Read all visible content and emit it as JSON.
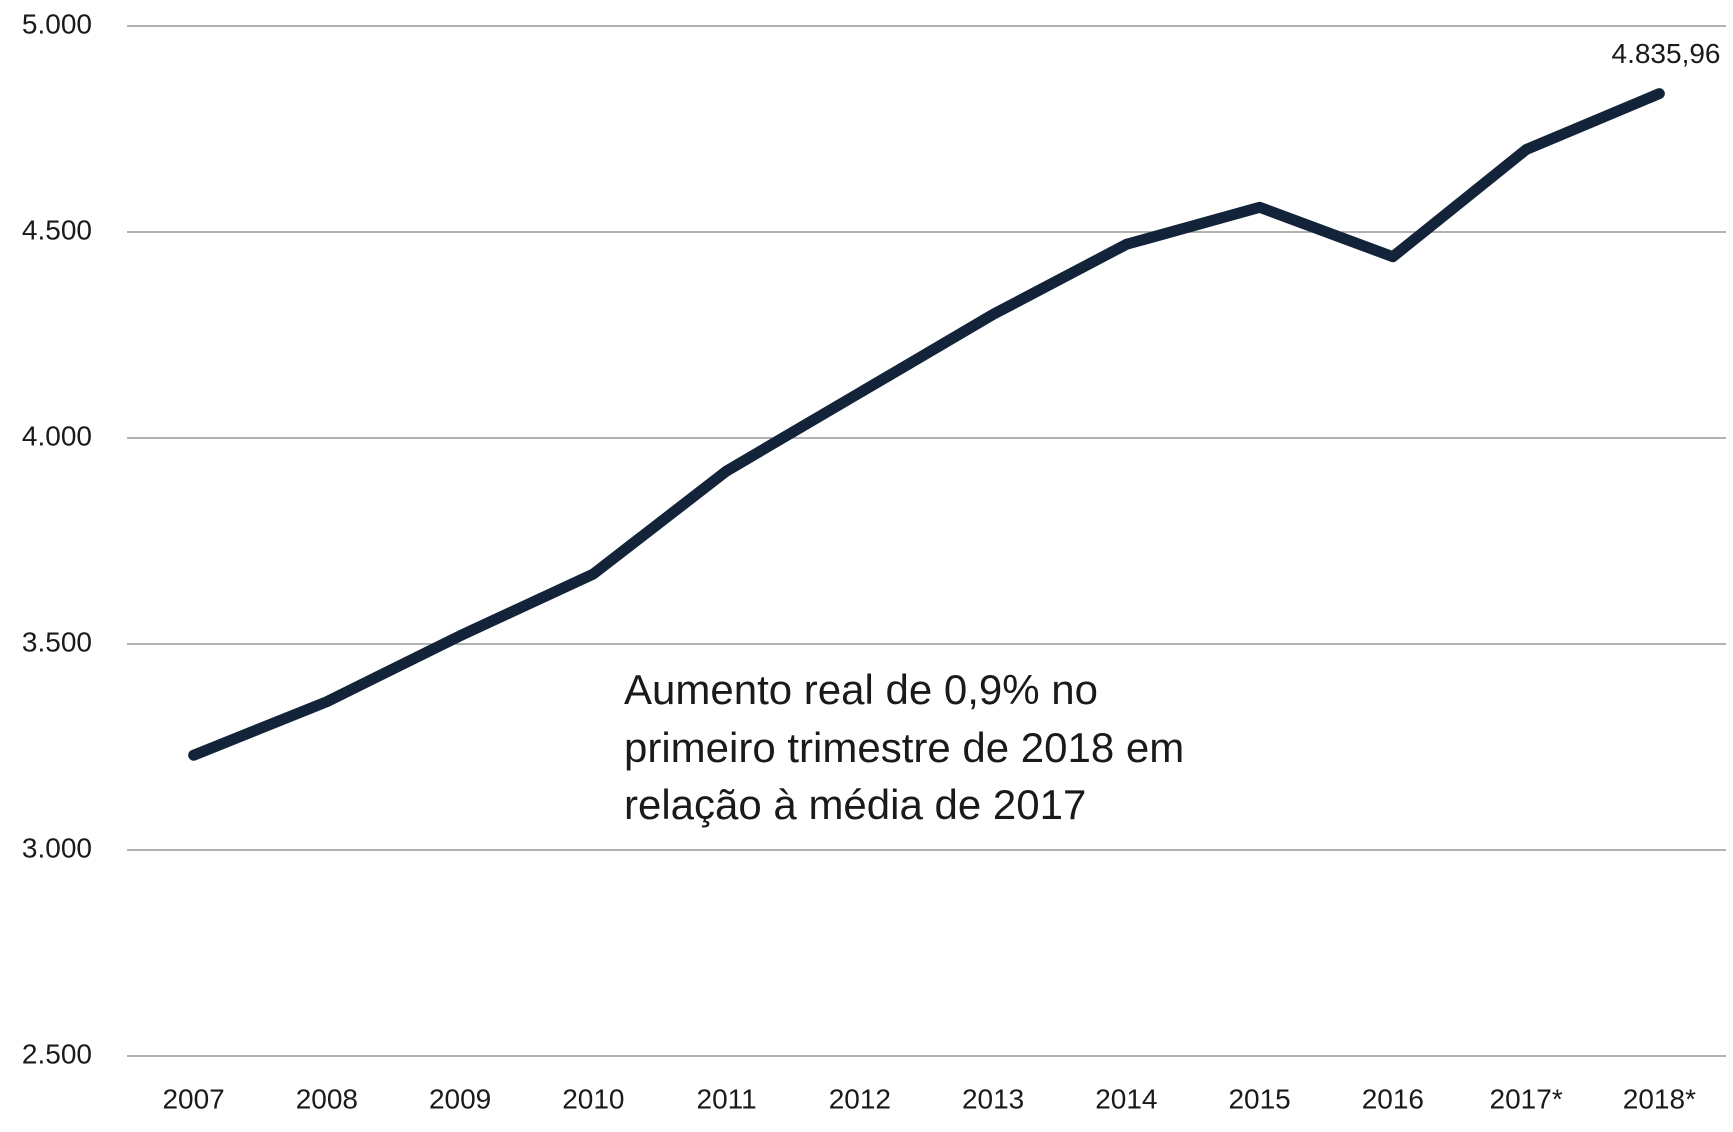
{
  "chart_data": {
    "type": "line",
    "categories": [
      "2007",
      "2008",
      "2009",
      "2010",
      "2011",
      "2012",
      "2013",
      "2014",
      "2015",
      "2016",
      "2017*",
      "2018*"
    ],
    "series": [
      {
        "color": "#13243a",
        "values": [
          3230,
          3360,
          3520,
          3670,
          3920,
          4110,
          4300,
          4470,
          4560,
          4440,
          4700,
          4835.96
        ],
        "value_labels": [
          null,
          null,
          null,
          null,
          null,
          null,
          null,
          null,
          null,
          null,
          null,
          "4.835,96"
        ]
      }
    ],
    "annotation": [
      "Aumento real de 0,9% no",
      "primeiro trimestre de 2018 em",
      "relação à média de 2017"
    ],
    "ylim": [
      2500,
      5000
    ],
    "yticks": [
      {
        "value": 2500,
        "label": "2.500"
      },
      {
        "value": 3000,
        "label": "3.000"
      },
      {
        "value": 3500,
        "label": "3.500"
      },
      {
        "value": 4000,
        "label": "4.000"
      },
      {
        "value": 4500,
        "label": "4.500"
      },
      {
        "value": 5000,
        "label": "5.000"
      }
    ],
    "grid": true
  }
}
